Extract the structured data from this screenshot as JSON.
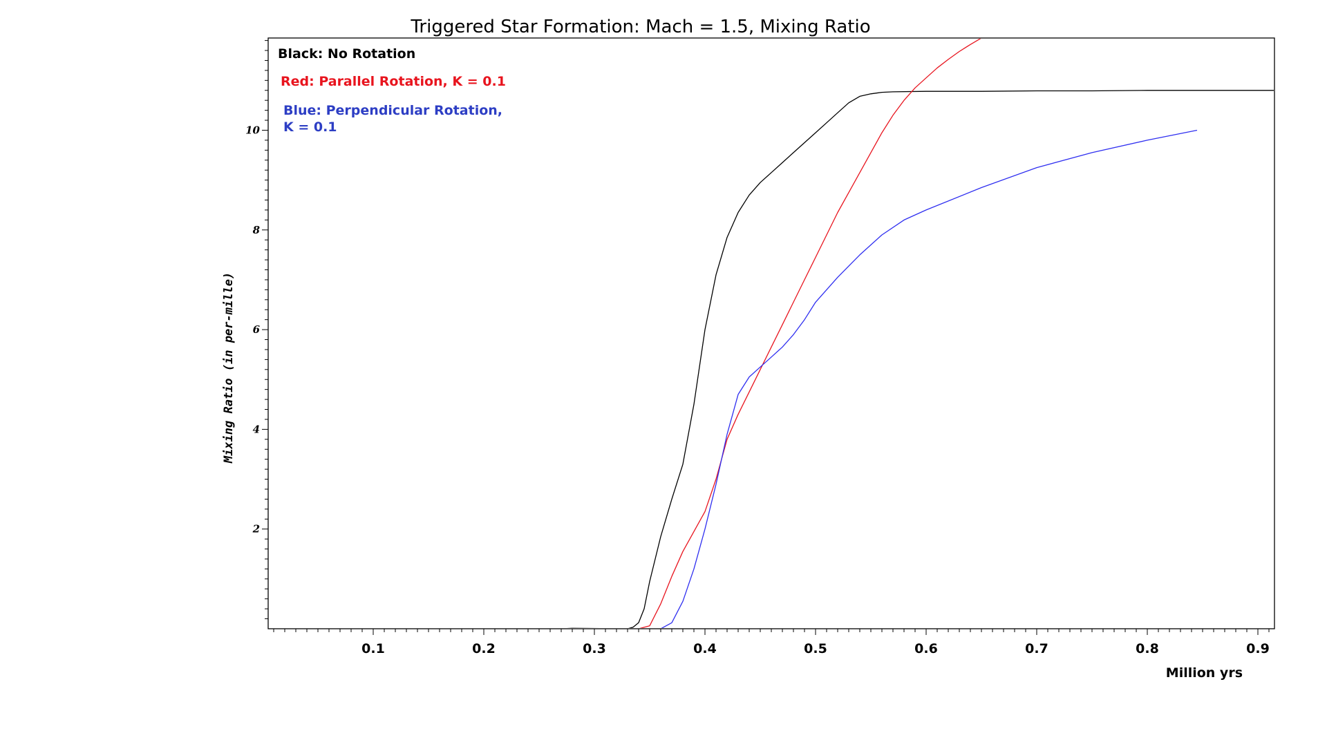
{
  "chart_data": {
    "type": "line",
    "title": "Triggered Star Formation: Mach = 1.5, Mixing Ratio",
    "xlabel": "Million yrs",
    "ylabel": "Mixing Ratio (in per-mille)",
    "xlim": [
      0.005,
      0.915
    ],
    "ylim": [
      0,
      11.85
    ],
    "x_ticks": [
      0.1,
      0.2,
      0.3,
      0.4,
      0.5,
      0.6,
      0.7,
      0.8,
      0.9
    ],
    "x_tick_labels": [
      "0.1",
      "0.2",
      "0.3",
      "0.4",
      "0.5",
      "0.6",
      "0.7",
      "0.8",
      "0.9"
    ],
    "y_ticks": [
      2,
      4,
      6,
      8,
      10
    ],
    "y_tick_labels": [
      "2",
      "4",
      "6",
      "8",
      "10"
    ],
    "grid": false,
    "legend_position": "top-left",
    "legend": [
      {
        "line1": "Black: No Rotation",
        "line2": "",
        "color": "#000000"
      },
      {
        "line1": "Red: Parallel Rotation, K = 0.1",
        "line2": "",
        "color": "#e8141e"
      },
      {
        "line1": "Blue: Perpendicular Rotation,",
        "line2": "K = 0.1",
        "color": "#2d3ec4"
      }
    ],
    "series": [
      {
        "color": "#000000",
        "x": [
          0.27,
          0.28,
          0.33,
          0.335,
          0.34,
          0.345,
          0.35,
          0.36,
          0.37,
          0.38,
          0.39,
          0.4,
          0.41,
          0.42,
          0.43,
          0.44,
          0.45,
          0.46,
          0.47,
          0.48,
          0.49,
          0.5,
          0.51,
          0.52,
          0.53,
          0.54,
          0.55,
          0.56,
          0.57,
          0.6,
          0.65,
          0.7,
          0.75,
          0.8,
          0.85,
          0.915
        ],
        "y": [
          0.0,
          0.01,
          0.0,
          0.03,
          0.12,
          0.4,
          0.95,
          1.85,
          2.6,
          3.3,
          4.5,
          6.0,
          7.1,
          7.85,
          8.35,
          8.7,
          8.95,
          9.15,
          9.35,
          9.55,
          9.75,
          9.95,
          10.15,
          10.35,
          10.55,
          10.68,
          10.73,
          10.76,
          10.77,
          10.78,
          10.78,
          10.79,
          10.79,
          10.8,
          10.8,
          10.8
        ]
      },
      {
        "color": "#e8141e",
        "x": [
          0.33,
          0.34,
          0.35,
          0.36,
          0.37,
          0.38,
          0.39,
          0.4,
          0.41,
          0.42,
          0.43,
          0.44,
          0.45,
          0.46,
          0.47,
          0.48,
          0.49,
          0.5,
          0.51,
          0.52,
          0.53,
          0.54,
          0.55,
          0.56,
          0.57,
          0.58,
          0.59,
          0.6,
          0.61,
          0.62,
          0.63,
          0.64,
          0.65,
          0.66,
          0.67,
          0.68,
          0.69,
          0.7
        ],
        "y": [
          0.0,
          0.0,
          0.06,
          0.5,
          1.05,
          1.55,
          1.95,
          2.35,
          3.0,
          3.8,
          4.3,
          4.75,
          5.2,
          5.65,
          6.1,
          6.55,
          7.0,
          7.45,
          7.9,
          8.35,
          8.75,
          9.15,
          9.55,
          9.95,
          10.3,
          10.6,
          10.85,
          11.05,
          11.25,
          11.42,
          11.58,
          11.72,
          11.85,
          11.98,
          12.1,
          12.22,
          12.34,
          12.46
        ]
      },
      {
        "color": "#2e2ef0",
        "x": [
          0.35,
          0.36,
          0.37,
          0.38,
          0.39,
          0.4,
          0.41,
          0.42,
          0.43,
          0.44,
          0.45,
          0.46,
          0.47,
          0.48,
          0.49,
          0.5,
          0.52,
          0.54,
          0.56,
          0.58,
          0.6,
          0.65,
          0.7,
          0.75,
          0.8,
          0.845
        ],
        "y": [
          0.0,
          0.0,
          0.12,
          0.55,
          1.2,
          2.0,
          2.9,
          3.9,
          4.7,
          5.05,
          5.25,
          5.45,
          5.65,
          5.9,
          6.2,
          6.55,
          7.05,
          7.5,
          7.9,
          8.2,
          8.4,
          8.85,
          9.25,
          9.55,
          9.8,
          10.0
        ]
      }
    ]
  }
}
